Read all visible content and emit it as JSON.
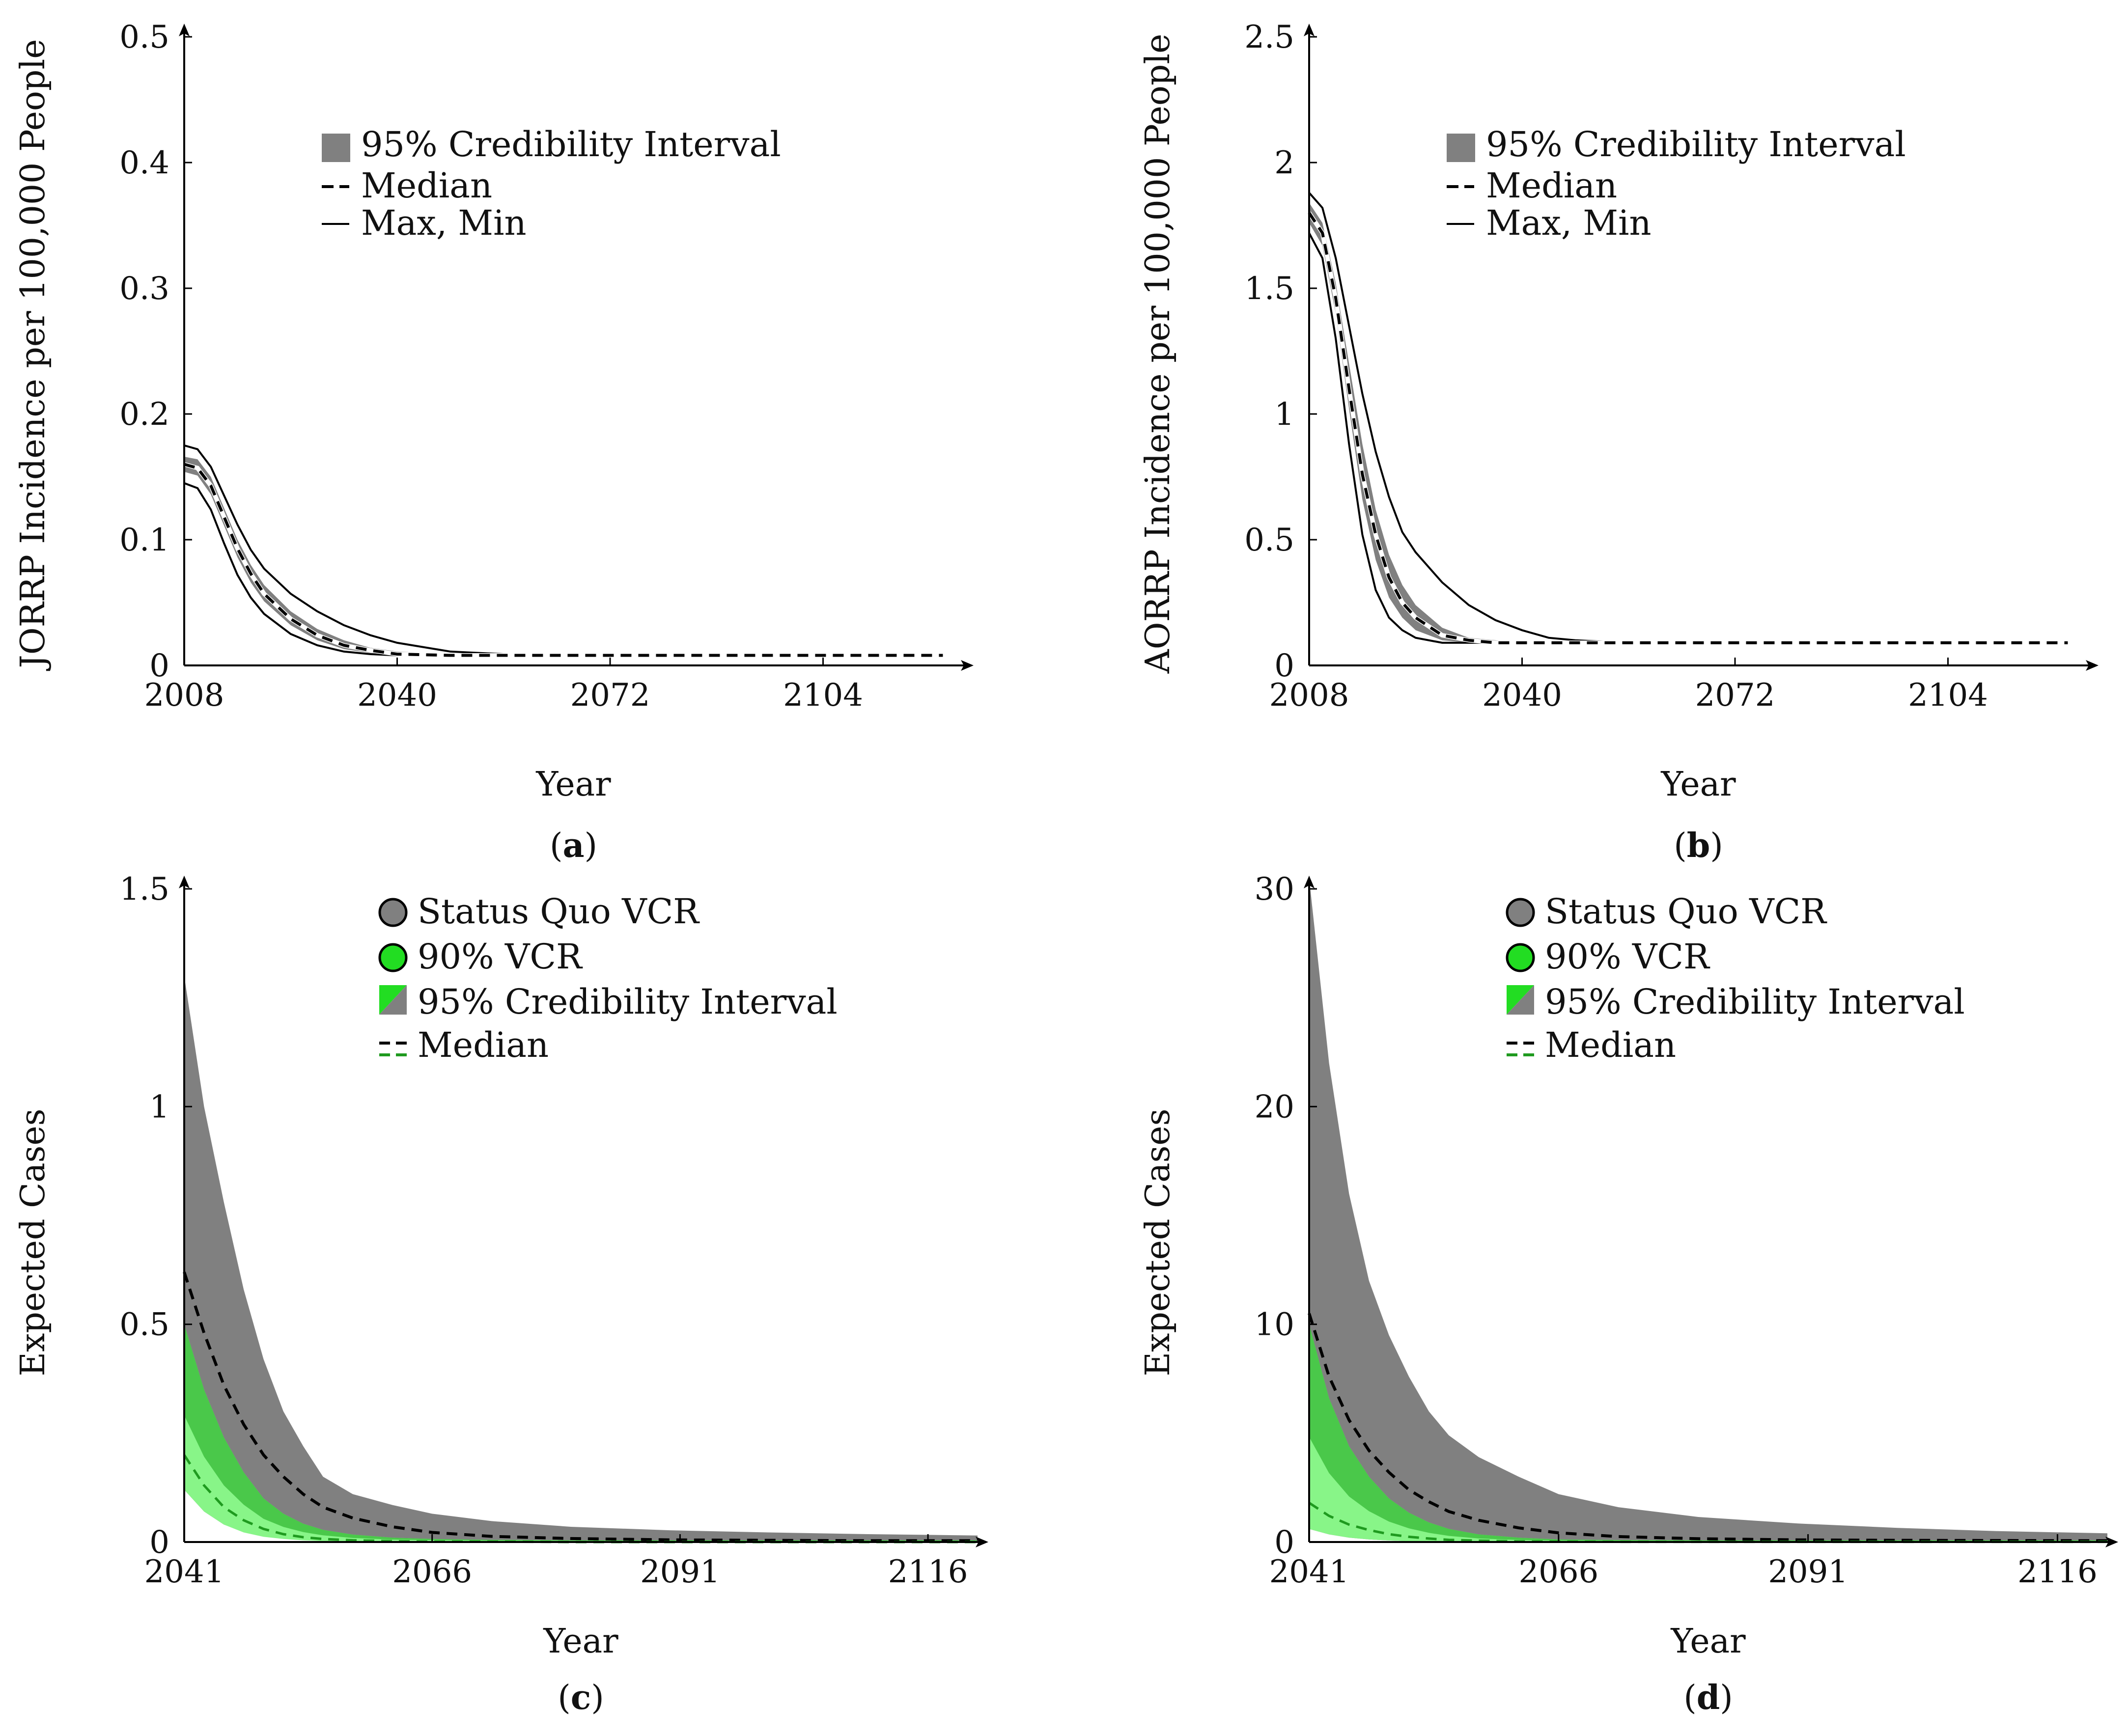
{
  "colors": {
    "band_gray": "#808080",
    "band_green_light": "#88f588",
    "band_green_dark": "#3fbf3f",
    "median_black": "#000000",
    "median_green": "#1f9a1f",
    "marker_green": "#22dd22",
    "axis": "#000000"
  },
  "chart_data": [
    {
      "id": "a",
      "caption": "a",
      "type": "area",
      "ylabel": "JORRP Incidence per 100,000 People",
      "xlabel": "Year",
      "xlim": [
        2008,
        2125
      ],
      "ylim": [
        0,
        0.5
      ],
      "xticks": [
        "2008",
        "2040",
        "2072",
        "2104"
      ],
      "xtick_values": [
        2008,
        2040,
        2072,
        2104
      ],
      "yticks": [
        "0",
        "0.1",
        "0.2",
        "0.3",
        "0.4",
        "0.5"
      ],
      "ytick_values": [
        0,
        0.1,
        0.2,
        0.3,
        0.4,
        0.5
      ],
      "legend": {
        "interval": "95% Credibility Interval",
        "median": "Median",
        "maxmin": "Max, Min"
      },
      "x": [
        2008,
        2010,
        2012,
        2014,
        2016,
        2018,
        2020,
        2024,
        2028,
        2032,
        2036,
        2040,
        2048,
        2056,
        2064,
        2080,
        2100,
        2122
      ],
      "series": [
        {
          "name": "Max",
          "values": [
            0.175,
            0.172,
            0.158,
            0.135,
            0.112,
            0.092,
            0.077,
            0.057,
            0.043,
            0.032,
            0.024,
            0.018,
            0.011,
            0.009,
            0.008,
            0.008,
            0.008,
            0.008
          ]
        },
        {
          "name": "Min",
          "values": [
            0.145,
            0.141,
            0.124,
            0.097,
            0.072,
            0.054,
            0.041,
            0.025,
            0.016,
            0.011,
            0.009,
            0.008,
            0.008,
            0.008,
            0.008,
            0.008,
            0.008,
            0.008
          ]
        },
        {
          "name": "CI Upper",
          "values": [
            0.166,
            0.164,
            0.15,
            0.125,
            0.1,
            0.08,
            0.064,
            0.043,
            0.029,
            0.02,
            0.014,
            0.011,
            0.009,
            0.009,
            0.009,
            0.009,
            0.009,
            0.009
          ]
        },
        {
          "name": "CI Lower",
          "values": [
            0.154,
            0.151,
            0.136,
            0.111,
            0.086,
            0.066,
            0.051,
            0.032,
            0.02,
            0.013,
            0.01,
            0.008,
            0.007,
            0.007,
            0.007,
            0.007,
            0.007,
            0.007
          ]
        },
        {
          "name": "Median",
          "values": [
            0.16,
            0.157,
            0.143,
            0.118,
            0.093,
            0.073,
            0.057,
            0.037,
            0.024,
            0.016,
            0.012,
            0.009,
            0.008,
            0.008,
            0.008,
            0.008,
            0.008,
            0.008
          ]
        }
      ]
    },
    {
      "id": "b",
      "caption": "b",
      "type": "area",
      "ylabel": "AORRP Incidence per 100,000 People",
      "xlabel": "Year",
      "xlim": [
        2008,
        2125
      ],
      "ylim": [
        0,
        2.5
      ],
      "xticks": [
        "2008",
        "2040",
        "2072",
        "2104"
      ],
      "xtick_values": [
        2008,
        2040,
        2072,
        2104
      ],
      "yticks": [
        "0",
        "0.5",
        "1",
        "1.5",
        "2",
        "2.5"
      ],
      "ytick_values": [
        0,
        0.5,
        1,
        1.5,
        2,
        2.5
      ],
      "legend": {
        "interval": "95% Credibility Interval",
        "median": "Median",
        "maxmin": "Max, Min"
      },
      "x": [
        2008,
        2010,
        2012,
        2014,
        2016,
        2018,
        2020,
        2022,
        2024,
        2028,
        2032,
        2036,
        2040,
        2044,
        2048,
        2056,
        2064,
        2080,
        2100,
        2122
      ],
      "series": [
        {
          "name": "Max",
          "values": [
            1.88,
            1.82,
            1.62,
            1.35,
            1.08,
            0.85,
            0.67,
            0.53,
            0.45,
            0.33,
            0.24,
            0.18,
            0.14,
            0.11,
            0.1,
            0.09,
            0.09,
            0.09,
            0.09,
            0.09
          ]
        },
        {
          "name": "Min",
          "values": [
            1.72,
            1.62,
            1.3,
            0.88,
            0.52,
            0.3,
            0.19,
            0.14,
            0.11,
            0.09,
            0.09,
            0.09,
            0.09,
            0.09,
            0.09,
            0.09,
            0.09,
            0.09,
            0.09,
            0.09
          ]
        },
        {
          "name": "CI Upper",
          "values": [
            1.84,
            1.76,
            1.52,
            1.2,
            0.88,
            0.62,
            0.44,
            0.32,
            0.24,
            0.15,
            0.11,
            0.1,
            0.09,
            0.09,
            0.09,
            0.09,
            0.09,
            0.09,
            0.09,
            0.09
          ]
        },
        {
          "name": "CI Lower",
          "values": [
            1.76,
            1.67,
            1.4,
            1.02,
            0.66,
            0.42,
            0.27,
            0.19,
            0.14,
            0.1,
            0.09,
            0.09,
            0.09,
            0.09,
            0.09,
            0.09,
            0.09,
            0.09,
            0.09,
            0.09
          ]
        },
        {
          "name": "Median",
          "values": [
            1.8,
            1.72,
            1.46,
            1.1,
            0.76,
            0.52,
            0.35,
            0.25,
            0.19,
            0.12,
            0.1,
            0.09,
            0.09,
            0.09,
            0.09,
            0.09,
            0.09,
            0.09,
            0.09,
            0.09
          ]
        }
      ]
    },
    {
      "id": "c",
      "caption": "c",
      "type": "area",
      "ylabel": "Expected Cases",
      "xlabel": "Year",
      "xlim": [
        2041,
        2121
      ],
      "ylim": [
        0,
        1.5
      ],
      "xticks": [
        "2041",
        "2066",
        "2091",
        "2116"
      ],
      "xtick_values": [
        2041,
        2066,
        2091,
        2116
      ],
      "yticks": [
        "0",
        "0.5",
        "1",
        "1.5"
      ],
      "ytick_values": [
        0,
        0.5,
        1,
        1.5
      ],
      "legend": {
        "sq": "Status Quo VCR",
        "vcr90": "90% VCR",
        "interval": "95% Credibility Interval",
        "median": "Median"
      },
      "x": [
        2041,
        2043,
        2045,
        2047,
        2049,
        2051,
        2053,
        2055,
        2058,
        2062,
        2066,
        2072,
        2080,
        2090,
        2100,
        2110,
        2121
      ],
      "series": [
        {
          "name": "Status Quo CI Upper",
          "values": [
            1.3,
            1.0,
            0.78,
            0.58,
            0.42,
            0.3,
            0.22,
            0.15,
            0.11,
            0.085,
            0.065,
            0.048,
            0.035,
            0.027,
            0.022,
            0.018,
            0.015
          ]
        },
        {
          "name": "Status Quo CI Lower",
          "values": [
            0.12,
            0.07,
            0.04,
            0.025,
            0.015,
            0.01,
            0.007,
            0.005,
            0.003,
            0.002,
            0.002,
            0.001,
            0.001,
            0.001,
            0.001,
            0.001,
            0.001
          ]
        },
        {
          "name": "Status Quo Median",
          "values": [
            0.62,
            0.48,
            0.36,
            0.27,
            0.2,
            0.15,
            0.11,
            0.08,
            0.055,
            0.035,
            0.022,
            0.013,
            0.008,
            0.005,
            0.004,
            0.003,
            0.003
          ]
        },
        {
          "name": "90% VCR CI Upper",
          "values": [
            0.5,
            0.35,
            0.24,
            0.16,
            0.1,
            0.065,
            0.042,
            0.028,
            0.017,
            0.01,
            0.007,
            0.005,
            0.004,
            0.004,
            0.004,
            0.004,
            0.004
          ]
        },
        {
          "name": "90% VCR CI Lower",
          "values": [
            0.12,
            0.07,
            0.04,
            0.022,
            0.012,
            0.007,
            0.004,
            0.002,
            0.001,
            0.001,
            0.0,
            0.0,
            0.0,
            0.0,
            0.0,
            0.0,
            0.0
          ]
        },
        {
          "name": "90% VCR Median",
          "values": [
            0.2,
            0.13,
            0.08,
            0.05,
            0.03,
            0.018,
            0.011,
            0.007,
            0.004,
            0.002,
            0.001,
            0.001,
            0.0,
            0.0,
            0.0,
            0.0,
            0.0
          ]
        }
      ]
    },
    {
      "id": "d",
      "caption": "d",
      "type": "area",
      "ylabel": "Expected Cases",
      "xlabel": "Year",
      "xlim": [
        2041,
        2121
      ],
      "ylim": [
        0,
        30
      ],
      "xticks": [
        "2041",
        "2066",
        "2091",
        "2116"
      ],
      "xtick_values": [
        2041,
        2066,
        2091,
        2116
      ],
      "yticks": [
        "0",
        "10",
        "20",
        "30"
      ],
      "ytick_values": [
        0,
        10,
        20,
        30
      ],
      "legend": {
        "sq": "Status Quo VCR",
        "vcr90": "90% VCR",
        "interval": "95% Credibility Interval",
        "median": "Median"
      },
      "x": [
        2041,
        2043,
        2045,
        2047,
        2049,
        2051,
        2053,
        2055,
        2058,
        2062,
        2066,
        2072,
        2080,
        2090,
        2100,
        2110,
        2121
      ],
      "series": [
        {
          "name": "Status Quo CI Upper",
          "values": [
            30.5,
            22.0,
            16.0,
            12.0,
            9.5,
            7.6,
            6.0,
            4.9,
            3.9,
            3.0,
            2.2,
            1.6,
            1.15,
            0.85,
            0.65,
            0.5,
            0.4
          ]
        },
        {
          "name": "Status Quo CI Lower",
          "values": [
            0.6,
            0.35,
            0.2,
            0.12,
            0.07,
            0.04,
            0.03,
            0.02,
            0.01,
            0.01,
            0.01,
            0.01,
            0.01,
            0.01,
            0.01,
            0.01,
            0.01
          ]
        },
        {
          "name": "Status Quo Median",
          "values": [
            10.5,
            7.6,
            5.6,
            4.2,
            3.2,
            2.4,
            1.85,
            1.4,
            1.0,
            0.65,
            0.42,
            0.25,
            0.15,
            0.1,
            0.08,
            0.07,
            0.06
          ]
        },
        {
          "name": "90% VCR CI Upper",
          "values": [
            10.0,
            6.6,
            4.4,
            3.0,
            2.0,
            1.35,
            0.9,
            0.6,
            0.35,
            0.2,
            0.12,
            0.09,
            0.08,
            0.08,
            0.08,
            0.08,
            0.08
          ]
        },
        {
          "name": "90% VCR CI Lower",
          "values": [
            0.6,
            0.35,
            0.2,
            0.12,
            0.07,
            0.04,
            0.02,
            0.01,
            0.01,
            0.0,
            0.0,
            0.0,
            0.0,
            0.0,
            0.0,
            0.0,
            0.0
          ]
        },
        {
          "name": "90% VCR Median",
          "values": [
            1.8,
            1.2,
            0.8,
            0.55,
            0.36,
            0.24,
            0.16,
            0.1,
            0.06,
            0.03,
            0.02,
            0.01,
            0.01,
            0.01,
            0.01,
            0.01,
            0.01
          ]
        }
      ]
    }
  ]
}
